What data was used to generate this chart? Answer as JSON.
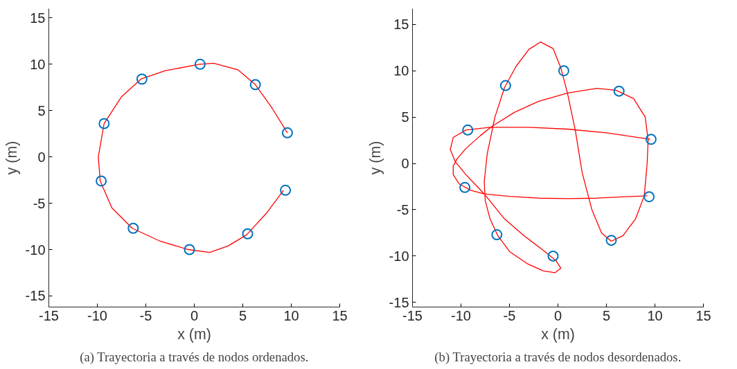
{
  "chart_data": [
    {
      "type": "scatter",
      "xlabel": "x (m)",
      "ylabel": "y (m)",
      "xlim": [
        -15,
        15
      ],
      "ylim": [
        -16.2,
        16
      ],
      "xticks": [
        -15,
        -10,
        -5,
        0,
        5,
        10,
        15
      ],
      "yticks": [
        -15,
        -10,
        -5,
        0,
        5,
        10,
        15
      ],
      "grid": false,
      "annotations": [
        "(a) Trayectoria a través de nodos ordenados."
      ],
      "series": [
        {
          "type": "line",
          "color": "#ff0000",
          "line_style": "solid",
          "x": [
            9.6,
            8,
            6.3,
            4.5,
            2,
            0.5,
            -3,
            -5.5,
            -7.5,
            -9.3,
            -9.9,
            -9.7,
            -8.5,
            -6.4,
            -3.5,
            -0.6,
            1.6,
            3.5,
            5.4,
            7.5,
            9.2
          ],
          "values": [
            2.6,
            5.3,
            7.8,
            9.4,
            10.1,
            10,
            9.3,
            8.4,
            6.5,
            3.6,
            0,
            -2.6,
            -5.5,
            -7.7,
            -9.1,
            -10,
            -10.3,
            -9.6,
            -8.4,
            -6,
            -3.6
          ]
        },
        {
          "color": "#0072bd",
          "marker": "circle",
          "x": [
            0.6,
            6.3,
            9.6,
            9.4,
            5.5,
            -0.5,
            -6.3,
            -9.6,
            -9.3,
            -5.4
          ],
          "values": [
            10,
            7.8,
            2.6,
            -3.6,
            -8.3,
            -10,
            -7.7,
            -2.6,
            3.6,
            8.4
          ]
        }
      ]
    },
    {
      "type": "scatter",
      "xlabel": "x (m)",
      "ylabel": "y (m)",
      "xlim": [
        -15,
        15
      ],
      "ylim": [
        -15.5,
        16.7
      ],
      "xticks": [
        -15,
        -10,
        -5,
        0,
        5,
        10,
        15
      ],
      "yticks": [
        -15,
        -10,
        -5,
        0,
        5,
        10,
        15
      ],
      "grid": false,
      "annotations": [
        "(b) Trayectoria a través de nodos desordenados."
      ],
      "series": [
        {
          "type": "line",
          "color": "#ff0000",
          "line_style": "solid",
          "x": [
            9.2,
            7,
            4,
            1,
            -2,
            -5,
            -7.6,
            -9,
            -10.2,
            -10.8,
            -10.8,
            -10.4,
            -9.5,
            -8,
            -6.8,
            -4.5,
            -2,
            1,
            4,
            6,
            7.8,
            9,
            9.3,
            9.2,
            8.9,
            8,
            6.7,
            5.5,
            4.5,
            3.5,
            2.5,
            1.8,
            1,
            0.3,
            -0.5,
            -1.8,
            -3,
            -4.3,
            -5.5,
            -6.5,
            -7.3,
            -7.6,
            -7.5,
            -7,
            -6.2,
            -5,
            -3.2,
            -1.5,
            -0.3,
            0.3,
            -0.2,
            -1.5,
            -3.5,
            -5.5,
            -7.6,
            -9.5,
            -10.6,
            -11.1,
            -10.8,
            -9.5,
            -7,
            -3,
            1,
            5,
            9.5
          ],
          "values": [
            -3.5,
            -3.6,
            -3.75,
            -3.8,
            -3.75,
            -3.55,
            -3.3,
            -2.9,
            -2.2,
            -1.2,
            -0.3,
            0.5,
            1.6,
            3,
            4,
            5.5,
            6.7,
            7.6,
            8.1,
            7.9,
            7,
            5,
            2.5,
            0,
            -3.5,
            -6,
            -7.8,
            -8.4,
            -7.5,
            -5,
            -1,
            3.5,
            7.5,
            10.3,
            12.4,
            13.1,
            12.3,
            10.5,
            8.2,
            5,
            1,
            -2,
            -4,
            -6,
            -7.8,
            -9.5,
            -10.8,
            -11.6,
            -11.8,
            -11.3,
            -10.5,
            -9.4,
            -7.8,
            -6,
            -3.3,
            -1.2,
            0.2,
            1.5,
            2.8,
            3.6,
            3.9,
            3.9,
            3.7,
            3.3,
            2.6
          ]
        },
        {
          "color": "#0072bd",
          "marker": "circle",
          "x": [
            0.6,
            6.3,
            9.6,
            9.4,
            5.5,
            -0.5,
            -6.3,
            -9.6,
            -9.3,
            -5.4
          ],
          "values": [
            10,
            7.8,
            2.6,
            -3.6,
            -8.3,
            -10,
            -7.7,
            -2.6,
            3.6,
            8.4
          ]
        }
      ]
    }
  ]
}
